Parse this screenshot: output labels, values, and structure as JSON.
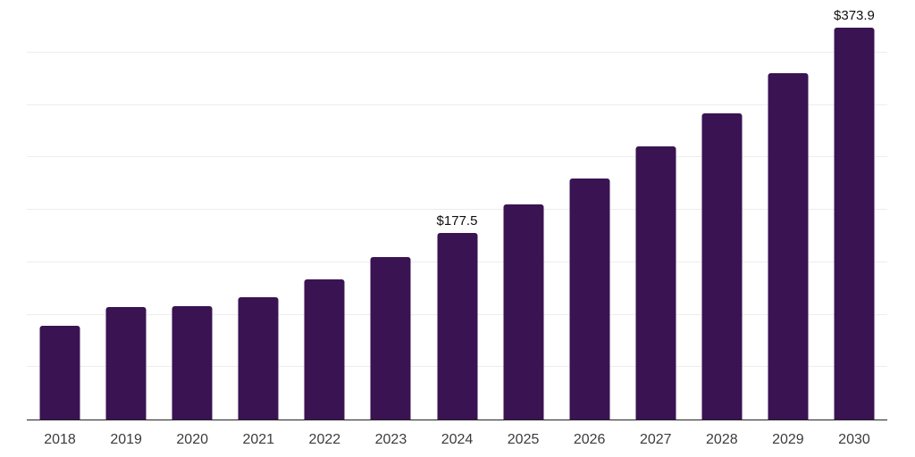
{
  "chart": {
    "background_color": "#ffffff",
    "bar_color": "#3a1352",
    "grid_color": "#ededed",
    "axis_line_color": "#222222",
    "x_tick_label_color": "#3c3c3c",
    "data_label_color": "#0f0f0f"
  },
  "chart_data": {
    "type": "bar",
    "title": "",
    "xlabel": "",
    "ylabel": "",
    "categories": [
      "2018",
      "2019",
      "2020",
      "2021",
      "2022",
      "2023",
      "2024",
      "2025",
      "2026",
      "2027",
      "2028",
      "2029",
      "2030"
    ],
    "values": [
      89.8,
      106.9,
      107.7,
      116.6,
      133.9,
      155.2,
      177.5,
      204.9,
      229.9,
      260.3,
      292.3,
      330.6,
      373.9
    ],
    "point_labels": [
      "",
      "",
      "",
      "",
      "",
      "",
      "$177.5",
      "",
      "",
      "",
      "",
      "",
      "$373.9"
    ],
    "ylim": [
      0,
      400
    ],
    "grid_step": 50,
    "grid": true,
    "y_tick_labels_visible": false,
    "legend": false
  }
}
